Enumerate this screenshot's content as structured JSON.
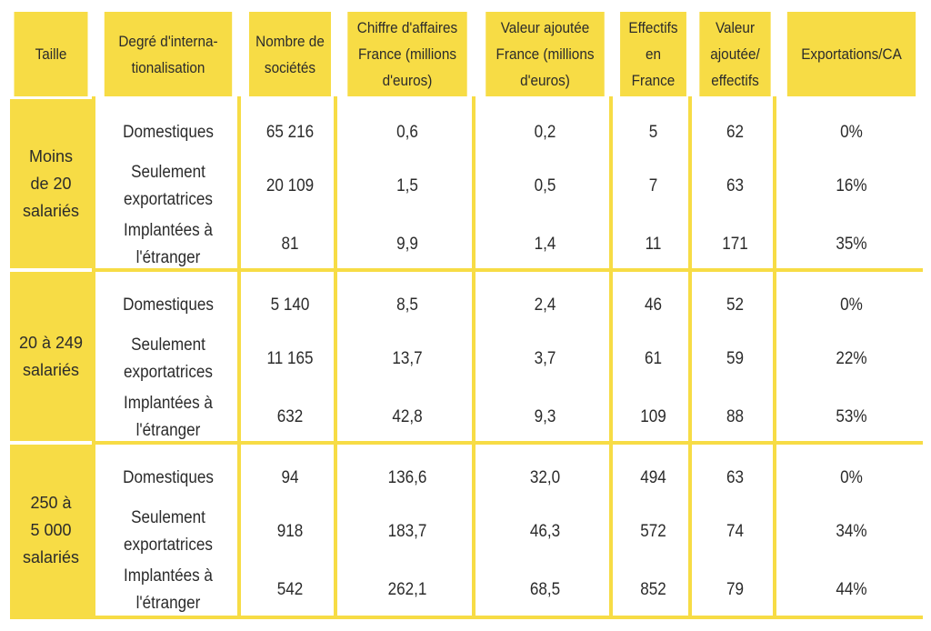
{
  "headers": [
    "Taille",
    "Degré d'interna-\ntionalisation",
    "Nombre de\nsociétés",
    "Chiffre d'affaires\nFrance (millions\nd'euros)",
    "Valeur ajoutée\nFrance (millions\nd'euros)",
    "Effectifs\nen\nFrance",
    "Valeur\najoutée/\neffectifs",
    "Exportations/CA"
  ],
  "groups": [
    {
      "size": "Moins\nde 20\nsalariés",
      "rows": [
        [
          "Domestiques",
          "65 216",
          "0,6",
          "0,2",
          "5",
          "62",
          "0%"
        ],
        [
          "Seulement\nexportatrices",
          "20 109",
          "1,5",
          "0,5",
          "7",
          "63",
          "16%"
        ],
        [
          "Implantées à\nl'étranger",
          "81",
          "9,9",
          "1,4",
          "11",
          "171",
          "35%"
        ]
      ]
    },
    {
      "size": "20 à 249\nsalariés",
      "rows": [
        [
          "Domestiques",
          "5 140",
          "8,5",
          "2,4",
          "46",
          "52",
          "0%"
        ],
        [
          "Seulement\nexportatrices",
          "11 165",
          "13,7",
          "3,7",
          "61",
          "59",
          "22%"
        ],
        [
          "Implantées à\nl'étranger",
          "632",
          "42,8",
          "9,3",
          "109",
          "88",
          "53%"
        ]
      ]
    },
    {
      "size": "250 à\n5 000\nsalariés",
      "rows": [
        [
          "Domestiques",
          "94",
          "136,6",
          "32,0",
          "494",
          "63",
          "0%"
        ],
        [
          "Seulement\nexportatrices",
          "918",
          "183,7",
          "46,3",
          "572",
          "74",
          "34%"
        ],
        [
          "Implantées à\nl'étranger",
          "542",
          "262,1",
          "68,5",
          "852",
          "79",
          "44%"
        ]
      ]
    }
  ],
  "colors": {
    "accent": "#f7dc45",
    "text": "#2b2b2b"
  }
}
